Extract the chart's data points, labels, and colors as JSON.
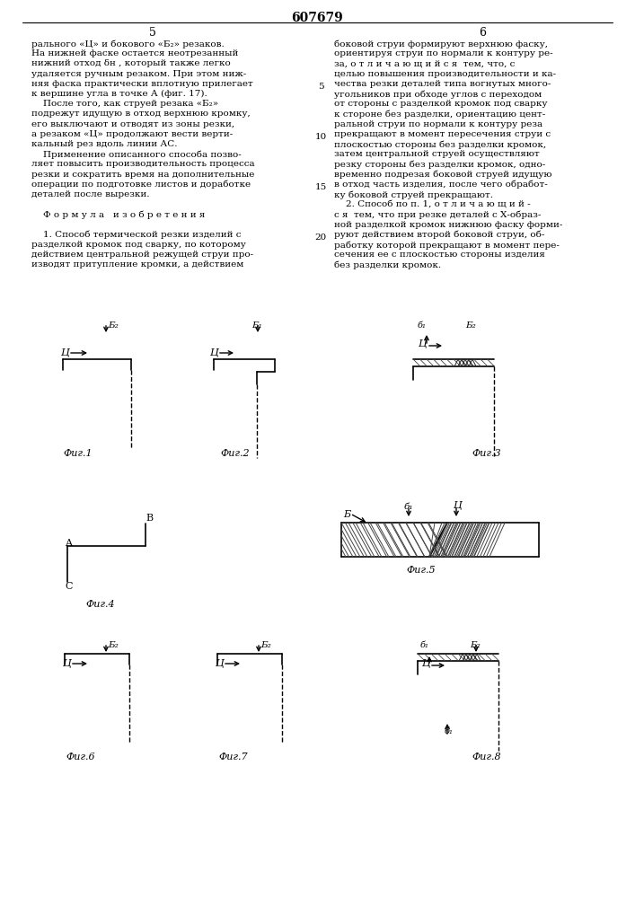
{
  "title": "607679",
  "page_col1": "5",
  "page_col2": "6",
  "col1_text": [
    "рального «Ц» и бокового «Б₂» резаков.",
    "На нижней фаске остается неотрезанный",
    "нижний отход δн , который также легко",
    "удаляется ручным резаком. При этом ниж-",
    "няя фаска практически вплотную прилегает",
    "к вершине угла в точке А (фиг. 17).",
    "    После того, как струей резака «Б₂»",
    "подрежут идущую в отход верхнюю кромку,",
    "его выключают и отводят из зоны резки,",
    "а резаком «Ц» продолжают вести верти-",
    "кальный рез вдоль линии АС.",
    "    Применение описанного способа позво-",
    "ляет повысить производительность процесса",
    "резки и сократить время на дополнительные",
    "операции по подготовке листов и доработке",
    "деталей после вырезки.",
    "",
    "    Ф о р м у л а   и з о б р е т е н и я",
    "",
    "    1. Способ термической резки изделий с",
    "разделкой кромок под сварку, по которому",
    "действием центральной режущей струи про-",
    "изводят притупление кромки, а действием"
  ],
  "col2_text": [
    "боковой струи формируют верхнюю фаску,",
    "ориентируя струи по нормали к контуру ре-",
    "за, о т л и ч а ю щ и й с я  тем, что, с",
    "целью повышения производительности и ка-",
    "чества резки деталей типа вогнутых много-",
    "угольников при обходе углов с переходом",
    "от стороны с разделкой кромок под сварку",
    "к стороне без разделки, ориентацию цент-",
    "ральной струи по нормали к контуру реза",
    "прекращают в момент пересечения струи с",
    "плоскостью стороны без разделки кромок,",
    "затем центральной струей осуществляют",
    "резку стороны без разделки кромок, одно-",
    "временно подрезая боковой струей идущую",
    "в отход часть изделия, после чего обработ-",
    "ку боковой струей прекращают.",
    "    2. Способ по п. 1, о т л и ч а ю щ и й -",
    "с я  тем, что при резке деталей с Х-образ-",
    "ной разделкой кромок нижнюю фаску форми-",
    "руют действием второй боковой струи, об-",
    "работку которой прекращают в момент пере-",
    "сечения ее с плоскостью стороны изделия",
    "без разделки кромок."
  ],
  "background_color": "#ffffff"
}
